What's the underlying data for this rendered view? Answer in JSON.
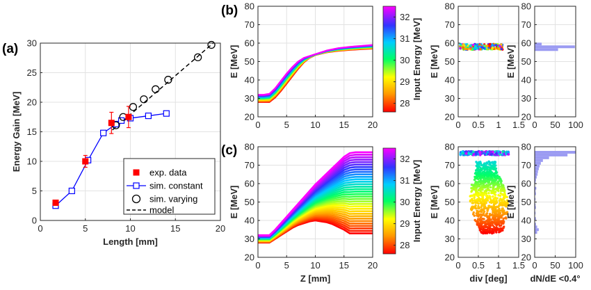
{
  "panel_labels": {
    "a": "(a)",
    "b": "(b)",
    "c": "(c)"
  },
  "colors": {
    "exp": "#ff0000",
    "sim_constant": "#0000ff",
    "sim_varying": "#000000",
    "model": "#000000",
    "histogram": "#9b9bf2"
  },
  "chart_data": [
    {
      "id": "a",
      "type": "line",
      "xlabel": "Length [mm]",
      "ylabel": "Energy Gain [MeV]",
      "xlim": [
        0,
        20
      ],
      "ylim": [
        0,
        30
      ],
      "xticks": [
        0,
        5,
        10,
        15,
        20
      ],
      "yticks": [
        0,
        5,
        10,
        15,
        20,
        25,
        30
      ],
      "grid": true,
      "legend_position": "bottom-right",
      "series": [
        {
          "name": "exp. data",
          "marker": "filled-square",
          "x": [
            1.7,
            5.0,
            7.9,
            9.8
          ],
          "y": [
            3.0,
            10.0,
            16.5,
            17.5
          ],
          "err": [
            0.4,
            1.0,
            1.8,
            1.8
          ]
        },
        {
          "name": "sim. constant",
          "marker": "open-square",
          "x": [
            1.7,
            3.5,
            5.3,
            7.0,
            8.4,
            9.0,
            10.0,
            12.0,
            14.0
          ],
          "y": [
            2.5,
            5.0,
            10.2,
            14.8,
            16.3,
            16.9,
            17.3,
            17.7,
            18.1
          ]
        },
        {
          "name": "sim. varying",
          "marker": "open-circle",
          "x": [
            8.4,
            9.2,
            10.3,
            11.5,
            12.8,
            14.2,
            17.5,
            19.0
          ],
          "y": [
            16.1,
            17.5,
            19.2,
            20.5,
            22.2,
            23.8,
            27.6,
            29.7
          ]
        },
        {
          "name": "model",
          "style": "dashed",
          "x": [
            8.0,
            19.2
          ],
          "y": [
            15.3,
            30.0
          ]
        }
      ]
    },
    {
      "id": "b",
      "type": "line",
      "xlabel": "",
      "ylabel": "E [MeV]",
      "xlim": [
        0,
        20
      ],
      "ylim": [
        20,
        80
      ],
      "xticks": [
        0,
        5,
        10,
        15,
        20
      ],
      "yticks": [
        20,
        30,
        40,
        50,
        60,
        70,
        80
      ],
      "colorbar": {
        "label": "Input Energy [MeV]",
        "ticks": [
          28,
          29,
          30,
          31,
          32
        ],
        "range": [
          27.6,
          32.5
        ]
      },
      "series": [
        {
          "name": "",
          "x": [
            0,
            1,
            2,
            3,
            4,
            5,
            6,
            7,
            8,
            9,
            10,
            12,
            14,
            16,
            18,
            20
          ],
          "y_low": [
            28.0,
            28.0,
            28.0,
            30.5,
            34.0,
            38.0,
            42.0,
            46.0,
            49.5,
            52.0,
            53.5,
            55.0,
            55.8,
            56.3,
            56.7,
            57.0
          ],
          "y_high": [
            32.0,
            32.0,
            32.5,
            35.5,
            39.5,
            43.5,
            47.0,
            50.0,
            52.0,
            53.0,
            54.0,
            56.0,
            57.3,
            58.0,
            58.5,
            59.0
          ]
        }
      ]
    },
    {
      "id": "b-div",
      "type": "scatter",
      "xlabel": "",
      "ylabel": "E [MeV]",
      "xlim": [
        0,
        1.5
      ],
      "ylim": [
        20,
        80
      ],
      "xticks": [
        0,
        0.5,
        1,
        1.5
      ],
      "yticks": [
        20,
        30,
        40,
        50,
        60,
        70,
        80
      ],
      "points": {
        "x_range": [
          0.05,
          1.1
        ],
        "y_range": [
          56.5,
          59.5
        ]
      }
    },
    {
      "id": "b-hist",
      "type": "bar",
      "orientation": "horizontal",
      "xlabel": "",
      "ylabel": "E [MeV]",
      "xlim": [
        0,
        100
      ],
      "ylim": [
        20,
        80
      ],
      "xticks": [
        0,
        50,
        100
      ],
      "yticks": [
        20,
        30,
        40,
        50,
        60,
        70,
        80
      ],
      "bins": [
        {
          "e": 56.5,
          "n": 57
        },
        {
          "e": 58.0,
          "n": 98
        },
        {
          "e": 59.5,
          "n": 17
        }
      ]
    },
    {
      "id": "c",
      "type": "area",
      "xlabel": "Z [mm]",
      "ylabel": "E [MeV]",
      "xlim": [
        0,
        20
      ],
      "ylim": [
        20,
        80
      ],
      "xticks": [
        0,
        5,
        10,
        15,
        20
      ],
      "yticks": [
        20,
        30,
        40,
        50,
        60,
        70,
        80
      ],
      "colorbar": {
        "label": "Input Energy [MeV]",
        "ticks": [
          28,
          29,
          30,
          31,
          32
        ],
        "range": [
          27.6,
          32.5
        ]
      },
      "series": [
        {
          "name": "",
          "x": [
            0,
            1,
            2,
            3,
            4,
            5,
            6,
            7,
            8,
            9,
            10,
            11,
            12,
            13,
            14,
            15,
            16,
            17,
            18,
            19,
            20
          ],
          "y_low": [
            28.0,
            28.0,
            28.0,
            30.0,
            32.0,
            34.0,
            36.0,
            37.5,
            38.5,
            39.5,
            40.0,
            39.5,
            39.0,
            38.0,
            36.5,
            35.0,
            33.0,
            33.0,
            33.0,
            33.0,
            33.0
          ],
          "y_high": [
            32.0,
            32.0,
            32.0,
            35.0,
            38.5,
            42.0,
            45.5,
            49.0,
            52.5,
            56.0,
            59.5,
            62.5,
            65.5,
            68.5,
            71.5,
            74.5,
            76.5,
            77.0,
            77.0,
            77.0,
            77.0
          ]
        }
      ]
    },
    {
      "id": "c-div",
      "type": "scatter",
      "xlabel": "div [deg]",
      "ylabel": "E [MeV]",
      "xlim": [
        0,
        1.5
      ],
      "ylim": [
        20,
        80
      ],
      "xticks": [
        0,
        0.5,
        1,
        1.5
      ],
      "yticks": [
        20,
        30,
        40,
        50,
        60,
        70,
        80
      ],
      "points": {
        "band_y": [
          75.5,
          77.5
        ],
        "band_x": [
          0.05,
          1.25
        ],
        "cloud_y": [
          33,
          72
        ],
        "cloud_x_center": 0.75
      }
    },
    {
      "id": "c-hist",
      "type": "bar",
      "orientation": "horizontal",
      "xlabel": "dN/dE <0.4°",
      "ylabel": "E [MeV]",
      "xlim": [
        0,
        100
      ],
      "ylim": [
        20,
        80
      ],
      "xticks": [
        0,
        50,
        100
      ],
      "yticks": [
        20,
        30,
        40,
        50,
        60,
        70,
        80
      ],
      "bins": [
        {
          "e": 77.0,
          "n": 100
        },
        {
          "e": 75.5,
          "n": 80
        },
        {
          "e": 74.0,
          "n": 35
        },
        {
          "e": 72.5,
          "n": 20
        },
        {
          "e": 71.0,
          "n": 15
        },
        {
          "e": 69.5,
          "n": 12
        },
        {
          "e": 68.0,
          "n": 10
        },
        {
          "e": 66.5,
          "n": 8
        },
        {
          "e": 65.0,
          "n": 7
        },
        {
          "e": 63.5,
          "n": 5
        },
        {
          "e": 62.0,
          "n": 3
        },
        {
          "e": 60.5,
          "n": 2
        },
        {
          "e": 57.5,
          "n": 4
        },
        {
          "e": 56.0,
          "n": 2
        },
        {
          "e": 54.5,
          "n": 3
        },
        {
          "e": 51.5,
          "n": 2
        },
        {
          "e": 48.5,
          "n": 2
        },
        {
          "e": 47.0,
          "n": 3
        },
        {
          "e": 44.0,
          "n": 2
        },
        {
          "e": 41.0,
          "n": 3
        },
        {
          "e": 38.0,
          "n": 3
        },
        {
          "e": 36.5,
          "n": 6
        },
        {
          "e": 35.0,
          "n": 10
        },
        {
          "e": 33.5,
          "n": 6
        }
      ]
    }
  ]
}
